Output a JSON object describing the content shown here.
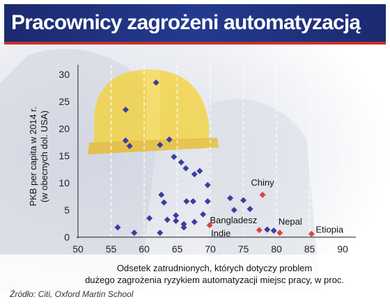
{
  "title": "Pracownicy zagrożeni automatyzacją",
  "source": "Źródło: Citi, Oxford Martin School",
  "colors": {
    "title_bg": "#1f2f7a",
    "title_underline": "#c9302c",
    "series_main": "#3a3f9a",
    "series_highlight": "#d8473f"
  },
  "chart_data": {
    "type": "scatter",
    "title": "",
    "xlabel": [
      "Odsetek  zatrudnionych, których dotyczy problem",
      "dużego zagrożenia ryzykiem automatyzacji miejsc pracy, w proc."
    ],
    "ylabel": [
      "PKB per capita w 2014 r.",
      "(w obecnych dol. USA)"
    ],
    "xlim": [
      50,
      92
    ],
    "ylim": [
      0,
      30
    ],
    "xticks": [
      50,
      55,
      60,
      65,
      70,
      75,
      80,
      85,
      90
    ],
    "yticks": [
      0,
      5,
      10,
      15,
      20,
      25,
      30
    ],
    "grid": "vertical dashed",
    "series": [
      {
        "points": [
          [
            56,
            1.8
          ],
          [
            57.2,
            23.5
          ],
          [
            57.2,
            17.8
          ],
          [
            57.8,
            16.8
          ],
          [
            58.5,
            0.8
          ],
          [
            60.8,
            3.5
          ],
          [
            61.8,
            28.5
          ],
          [
            62.4,
            17
          ],
          [
            62.4,
            0.8
          ],
          [
            62.6,
            7.8
          ],
          [
            63,
            6.4
          ],
          [
            63.5,
            3.2
          ],
          [
            63.8,
            18
          ],
          [
            64.5,
            14.8
          ],
          [
            64.8,
            4
          ],
          [
            64.8,
            3
          ],
          [
            65.6,
            13.8
          ],
          [
            66,
            2.4
          ],
          [
            66,
            1.8
          ],
          [
            66.3,
            12.7
          ],
          [
            66.4,
            6.6
          ],
          [
            67.4,
            6.6
          ],
          [
            67.6,
            11.6
          ],
          [
            67.6,
            2.8
          ],
          [
            68.4,
            12.2
          ],
          [
            68.9,
            4.2
          ],
          [
            69.6,
            6.6
          ],
          [
            69.6,
            9.6
          ],
          [
            73,
            7.2
          ],
          [
            73.6,
            5
          ],
          [
            75,
            6.8
          ],
          [
            76,
            5.2
          ],
          [
            78.6,
            1.4
          ],
          [
            79.6,
            1.2
          ]
        ]
      },
      {
        "points": [
          [
            69.9,
            2.2
          ],
          [
            77.4,
            1.3
          ],
          [
            77.9,
            7.8
          ],
          [
            80.5,
            0.8
          ],
          [
            85.3,
            0.6
          ]
        ],
        "labels": [
          "Indie",
          "Bangladesz",
          "Chiny",
          "Nepal",
          "Etiopia"
        ]
      }
    ]
  }
}
